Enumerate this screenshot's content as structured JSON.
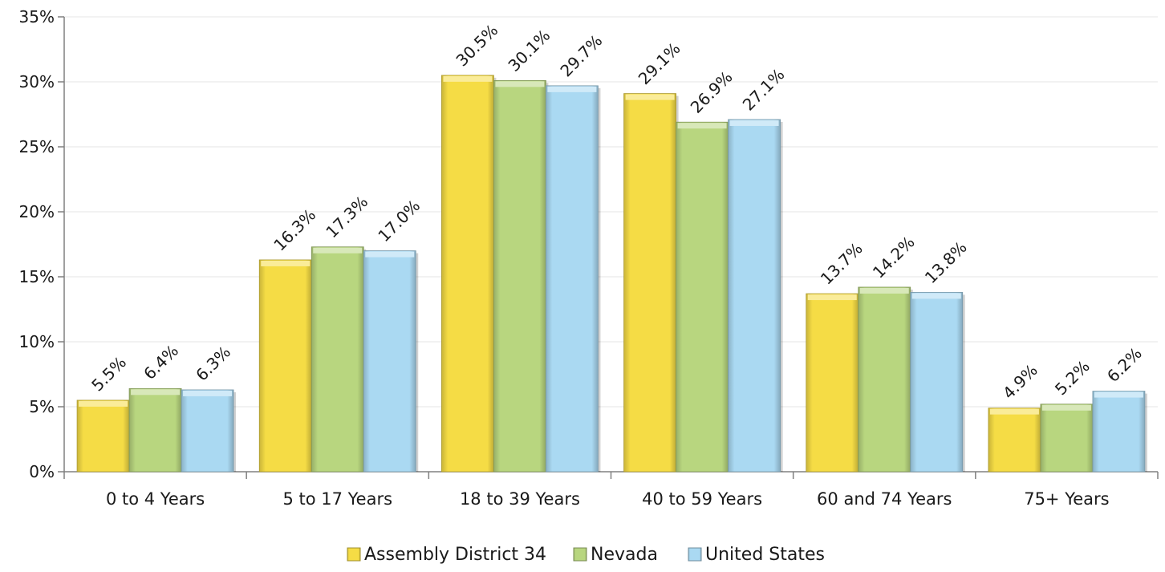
{
  "chart_data": {
    "type": "bar",
    "categories": [
      "0 to 4 Years",
      "5 to 17 Years",
      "18 to 39 Years",
      "40 to 59 Years",
      "60 and 74 Years",
      "75+ Years"
    ],
    "series": [
      {
        "name": "Assembly District 34",
        "values": [
          5.5,
          16.3,
          30.5,
          29.1,
          13.7,
          4.9
        ],
        "labels": [
          "5.5%",
          "16.3%",
          "30.5%",
          "29.1%",
          "13.7%",
          "4.9%"
        ],
        "color": "#f5dc45"
      },
      {
        "name": "Nevada",
        "values": [
          6.4,
          17.3,
          30.1,
          26.9,
          14.2,
          5.2
        ],
        "labels": [
          "6.4%",
          "17.3%",
          "30.1%",
          "26.9%",
          "14.2%",
          "5.2%"
        ],
        "color": "#b8d67f"
      },
      {
        "name": "United States",
        "values": [
          6.3,
          17.0,
          29.7,
          27.1,
          13.8,
          6.2
        ],
        "labels": [
          "6.3%",
          "17.0%",
          "29.7%",
          "27.1%",
          "13.8%",
          "6.2%"
        ],
        "color": "#aad9f2"
      }
    ],
    "yticks": [
      "0%",
      "5%",
      "10%",
      "15%",
      "20%",
      "25%",
      "30%",
      "35%"
    ],
    "ylim": [
      0,
      35
    ],
    "grid": true,
    "legend": "bottom",
    "title": "",
    "xlabel": "",
    "ylabel": ""
  }
}
